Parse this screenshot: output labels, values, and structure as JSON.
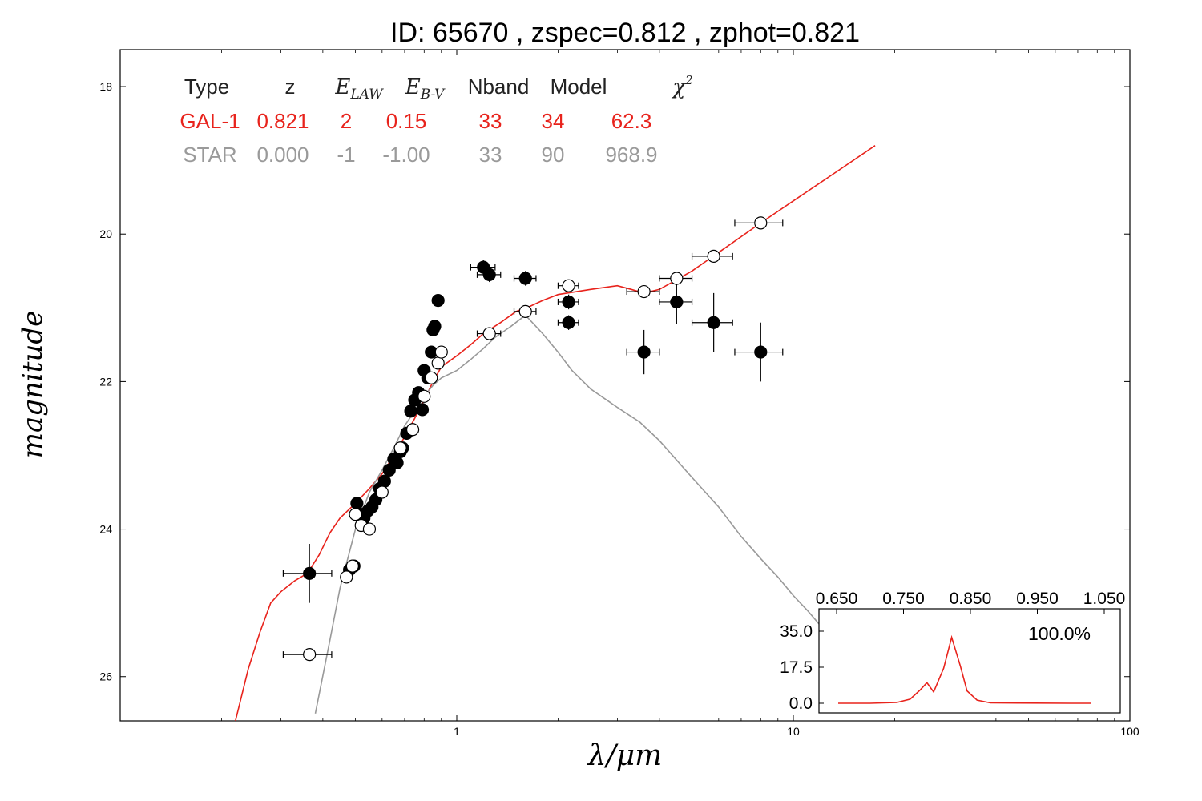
{
  "title": "ID:  65670 , zspec=0.812 , zphot=0.821",
  "chart_data": [
    {
      "type": "scatter",
      "xlabel": "λ/μm",
      "ylabel": "magnitude",
      "xscale": "log",
      "xlim": [
        0.1,
        100
      ],
      "ylim": [
        26.6,
        17.5
      ],
      "y_inverted": true,
      "x_ticks": [
        1,
        10,
        100
      ],
      "x_tick_labels": [
        "1",
        "10",
        "100"
      ],
      "y_ticks": [
        18,
        20,
        22,
        24,
        26
      ],
      "y_tick_labels": [
        "18",
        "20",
        "22",
        "24",
        "26"
      ],
      "fit_table": {
        "headers": [
          "Type",
          "z",
          "E_LAW",
          "E_B-V",
          "Nband",
          "Model",
          "χ²"
        ],
        "rows": [
          {
            "color": "#e8231c",
            "cells": [
              "GAL-1",
              "0.821",
              "2",
              "0.15",
              "33",
              "34",
              "62.3"
            ]
          },
          {
            "color": "#9a9a9a",
            "cells": [
              "STAR",
              "0.000",
              "-1",
              "-1.00",
              "33",
              "90",
              "968.9"
            ]
          }
        ]
      },
      "series": [
        {
          "kind": "line",
          "color": "#e8231c",
          "x": [
            0.22,
            0.24,
            0.26,
            0.28,
            0.3,
            0.33,
            0.36,
            0.39,
            0.42,
            0.45,
            0.5,
            0.55,
            0.6,
            0.65,
            0.7,
            0.75,
            0.8,
            0.85,
            0.9,
            1.0,
            1.1,
            1.2,
            1.35,
            1.5,
            1.65,
            1.8,
            2.0,
            2.5,
            3.0,
            3.3,
            3.6,
            4.0,
            4.5,
            5.0,
            6.0,
            8.0,
            10.0,
            13.0,
            17.5
          ],
          "y": [
            26.6,
            25.9,
            25.4,
            25.0,
            24.85,
            24.7,
            24.6,
            24.35,
            24.05,
            23.85,
            23.65,
            23.45,
            23.25,
            23.0,
            22.75,
            22.5,
            22.25,
            22.0,
            21.8,
            21.65,
            21.5,
            21.35,
            21.2,
            21.05,
            20.98,
            20.9,
            20.82,
            20.75,
            20.7,
            20.75,
            20.8,
            20.75,
            20.62,
            20.5,
            20.25,
            19.85,
            19.55,
            19.2,
            18.8
          ]
        },
        {
          "kind": "line",
          "color": "#999999",
          "x": [
            0.38,
            0.42,
            0.45,
            0.5,
            0.55,
            0.6,
            0.65,
            0.7,
            0.75,
            0.8,
            0.85,
            0.9,
            1.0,
            1.1,
            1.2,
            1.3,
            1.45,
            1.6,
            1.8,
            2.0,
            2.2,
            2.5,
            3.0,
            3.5,
            4.0,
            5.0,
            6.0,
            7.0,
            8.0,
            9.0,
            10.0,
            11.0,
            12.0
          ],
          "y": [
            26.5,
            25.5,
            24.8,
            24.0,
            23.5,
            23.2,
            22.9,
            22.6,
            22.4,
            22.2,
            22.05,
            21.95,
            21.85,
            21.7,
            21.55,
            21.4,
            21.25,
            21.1,
            21.35,
            21.6,
            21.85,
            22.1,
            22.35,
            22.55,
            22.8,
            23.3,
            23.7,
            24.1,
            24.4,
            24.65,
            24.9,
            25.1,
            25.3
          ]
        },
        {
          "kind": "points",
          "name": "",
          "marker": "filled",
          "color": "#000000",
          "x": [
            0.365,
            0.48,
            0.495,
            0.505,
            0.52,
            0.53,
            0.545,
            0.56,
            0.575,
            0.59,
            0.61,
            0.63,
            0.65,
            0.665,
            0.68,
            0.69,
            0.71,
            0.73,
            0.75,
            0.77,
            0.79,
            0.8,
            0.82,
            0.84,
            0.85,
            0.86,
            0.88,
            1.2,
            1.25,
            1.6,
            2.15,
            2.15,
            3.6,
            4.5,
            5.8,
            8.0
          ],
          "y": [
            24.6,
            24.55,
            24.5,
            23.65,
            23.8,
            23.85,
            23.75,
            23.7,
            23.6,
            23.45,
            23.35,
            23.2,
            23.05,
            23.1,
            22.95,
            22.9,
            22.7,
            22.4,
            22.25,
            22.15,
            22.38,
            21.85,
            21.95,
            21.6,
            21.3,
            21.25,
            20.9,
            20.45,
            20.55,
            20.6,
            20.92,
            21.2,
            21.6,
            20.92,
            21.2,
            21.6
          ],
          "x_err": [
            0.06,
            0.01,
            0.01,
            0.01,
            0.01,
            0.01,
            0.01,
            0.01,
            0.01,
            0.01,
            0.01,
            0.01,
            0.01,
            0.01,
            0.01,
            0.01,
            0.01,
            0.01,
            0.01,
            0.01,
            0.01,
            0.01,
            0.01,
            0.01,
            0.01,
            0.01,
            0.01,
            0.1,
            0.1,
            0.12,
            0.15,
            0.15,
            0.4,
            0.5,
            0.8,
            1.3
          ],
          "y_err": [
            0.4,
            0.05,
            0.05,
            0.05,
            0.05,
            0.05,
            0.05,
            0.05,
            0.05,
            0.05,
            0.05,
            0.05,
            0.05,
            0.05,
            0.05,
            0.05,
            0.05,
            0.05,
            0.05,
            0.05,
            0.05,
            0.05,
            0.05,
            0.05,
            0.05,
            0.05,
            0.05,
            0.1,
            0.1,
            0.1,
            0.1,
            0.1,
            0.3,
            0.3,
            0.4,
            0.4
          ]
        },
        {
          "kind": "points",
          "name": "",
          "marker": "open",
          "color": "#000000",
          "x": [
            0.365,
            0.47,
            0.49,
            0.5,
            0.52,
            0.55,
            0.6,
            0.68,
            0.74,
            0.8,
            0.84,
            0.88,
            0.9,
            1.25,
            1.6,
            2.15,
            3.6,
            4.5,
            5.8,
            8.0
          ],
          "y": [
            25.7,
            24.65,
            24.5,
            23.8,
            23.95,
            24.0,
            23.5,
            22.9,
            22.65,
            22.2,
            21.95,
            21.75,
            21.6,
            21.35,
            21.05,
            20.7,
            20.78,
            20.6,
            20.3,
            19.85
          ],
          "x_err": [
            0.06,
            0.01,
            0.01,
            0.01,
            0.01,
            0.01,
            0.01,
            0.01,
            0.01,
            0.01,
            0.01,
            0.01,
            0.01,
            0.1,
            0.12,
            0.15,
            0.4,
            0.5,
            0.8,
            1.3
          ],
          "y_err": [
            0.02,
            0.02,
            0.02,
            0.02,
            0.02,
            0.02,
            0.02,
            0.02,
            0.02,
            0.02,
            0.02,
            0.02,
            0.02,
            0.02,
            0.02,
            0.02,
            0.02,
            0.02,
            0.02,
            0.02
          ]
        }
      ]
    },
    {
      "type": "line",
      "xlim": [
        0.6,
        1.05
      ],
      "ylim": [
        0,
        35
      ],
      "x_ticks": [
        0.65,
        0.75,
        0.85,
        0.95,
        1.05
      ],
      "x_tick_labels": [
        "0.650",
        "0.750",
        "0.850",
        "0.950",
        "1.050"
      ],
      "y_ticks": [
        0,
        17.5,
        35
      ],
      "y_tick_labels": [
        "0.0",
        "17.5",
        "35.0"
      ],
      "annotation": "100.0%",
      "series": [
        {
          "color": "#e8231c",
          "x": [
            0.6,
            0.7,
            0.74,
            0.76,
            0.775,
            0.785,
            0.795,
            0.81,
            0.822,
            0.835,
            0.845,
            0.86,
            0.88,
            1.0,
            1.05
          ],
          "y": [
            0.0,
            0.0,
            0.4,
            2.0,
            6.5,
            10.0,
            5.5,
            17.0,
            32.0,
            18.0,
            6.0,
            1.5,
            0.2,
            0.0,
            0.0
          ]
        }
      ]
    }
  ]
}
